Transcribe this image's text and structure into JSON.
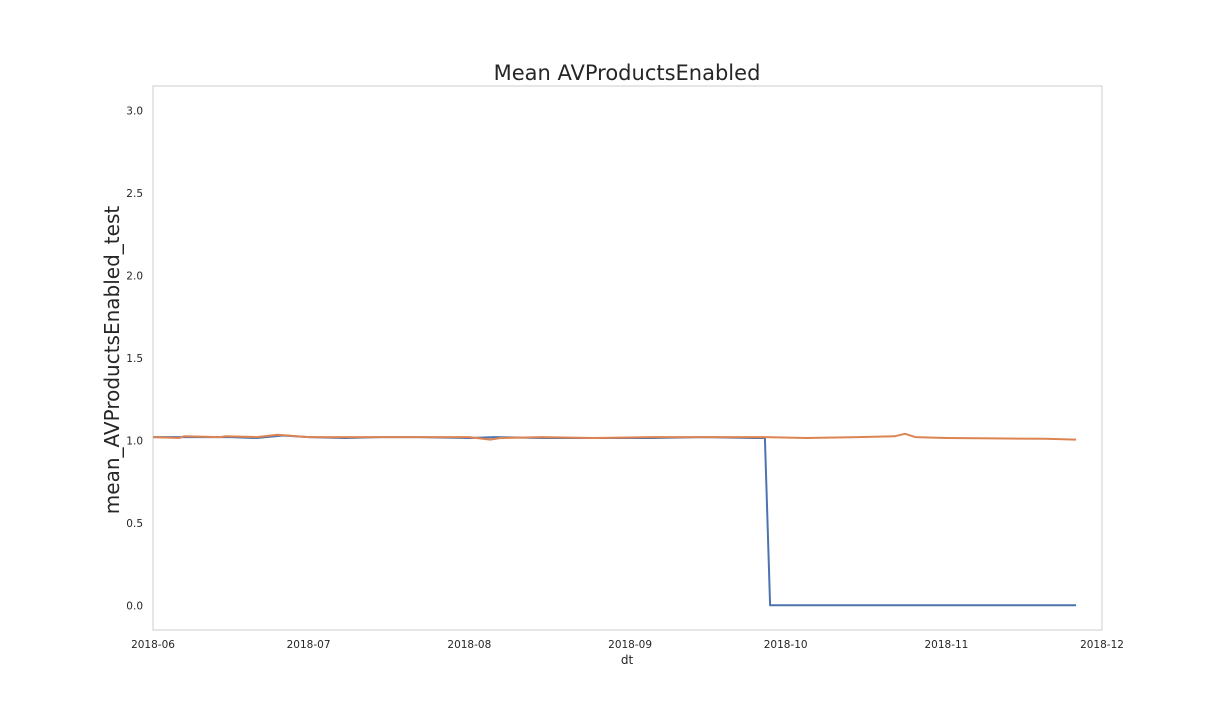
{
  "chart_data": {
    "type": "line",
    "title": "Mean AVProductsEnabled",
    "xlabel": "dt",
    "ylabel": "mean_AVProductsEnabled_test",
    "xlim": [
      "2018-06-01",
      "2018-12-01"
    ],
    "ylim": [
      -0.15,
      3.15
    ],
    "x_ticks": [
      "2018-06",
      "2018-07",
      "2018-08",
      "2018-09",
      "2018-10",
      "2018-11",
      "2018-12"
    ],
    "y_ticks": [
      "0.0",
      "0.5",
      "1.0",
      "1.5",
      "2.0",
      "2.5",
      "3.0"
    ],
    "grid": false,
    "legend": "none",
    "series": [
      {
        "color": "#4c72b0",
        "points": [
          [
            "2018-06-01",
            1.02
          ],
          [
            "2018-06-06",
            1.02
          ],
          [
            "2018-06-11",
            1.02
          ],
          [
            "2018-06-16",
            1.02
          ],
          [
            "2018-06-21",
            1.015
          ],
          [
            "2018-06-26",
            1.03
          ],
          [
            "2018-07-01",
            1.02
          ],
          [
            "2018-07-08",
            1.015
          ],
          [
            "2018-07-15",
            1.02
          ],
          [
            "2018-07-22",
            1.02
          ],
          [
            "2018-08-01",
            1.015
          ],
          [
            "2018-08-06",
            1.02
          ],
          [
            "2018-08-15",
            1.015
          ],
          [
            "2018-08-25",
            1.015
          ],
          [
            "2018-09-05",
            1.015
          ],
          [
            "2018-09-15",
            1.02
          ],
          [
            "2018-09-25",
            1.015
          ],
          [
            "2018-09-27",
            1.015
          ],
          [
            "2018-09-28",
            0.0
          ],
          [
            "2018-10-15",
            0.0
          ],
          [
            "2018-11-01",
            0.0
          ],
          [
            "2018-11-15",
            0.0
          ],
          [
            "2018-11-26",
            0.0
          ]
        ]
      },
      {
        "color": "#dd8452",
        "points": [
          [
            "2018-06-01",
            1.02
          ],
          [
            "2018-06-06",
            1.015
          ],
          [
            "2018-06-07",
            1.025
          ],
          [
            "2018-06-14",
            1.02
          ],
          [
            "2018-06-15",
            1.025
          ],
          [
            "2018-06-21",
            1.02
          ],
          [
            "2018-06-25",
            1.035
          ],
          [
            "2018-07-01",
            1.02
          ],
          [
            "2018-07-08",
            1.02
          ],
          [
            "2018-07-15",
            1.02
          ],
          [
            "2018-07-22",
            1.02
          ],
          [
            "2018-08-01",
            1.02
          ],
          [
            "2018-08-05",
            1.005
          ],
          [
            "2018-08-07",
            1.015
          ],
          [
            "2018-08-15",
            1.02
          ],
          [
            "2018-08-25",
            1.015
          ],
          [
            "2018-09-05",
            1.02
          ],
          [
            "2018-09-15",
            1.02
          ],
          [
            "2018-09-27",
            1.02
          ],
          [
            "2018-10-05",
            1.015
          ],
          [
            "2018-10-15",
            1.02
          ],
          [
            "2018-10-22",
            1.025
          ],
          [
            "2018-10-24",
            1.04
          ],
          [
            "2018-10-26",
            1.02
          ],
          [
            "2018-11-01",
            1.015
          ],
          [
            "2018-11-10",
            1.012
          ],
          [
            "2018-11-20",
            1.01
          ],
          [
            "2018-11-26",
            1.005
          ]
        ]
      }
    ]
  }
}
